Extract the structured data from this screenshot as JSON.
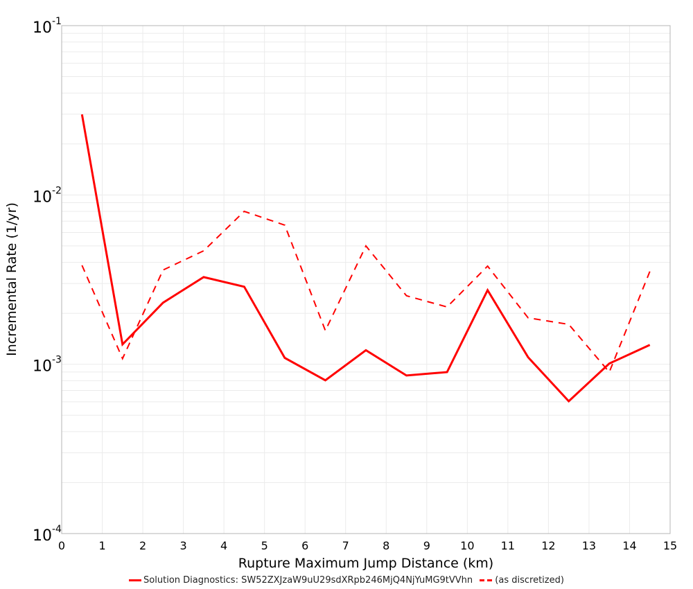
{
  "chart_data": {
    "type": "line",
    "title": "",
    "xlabel": "Rupture Maximum Jump Distance (km)",
    "ylabel": "Incremental Rate (1/yr)",
    "xlim": [
      0,
      15
    ],
    "ylim": [
      0.0001,
      0.1
    ],
    "yscale": "log",
    "grid": true,
    "legend_position": "bottom",
    "x_ticks": [
      "0",
      "1",
      "2",
      "3",
      "4",
      "5",
      "6",
      "7",
      "8",
      "9",
      "10",
      "11",
      "12",
      "13",
      "14",
      "15"
    ],
    "y_ticks": [
      {
        "base": "10",
        "exp": "-1",
        "value": 0.1
      },
      {
        "base": "10",
        "exp": "-2",
        "value": 0.01
      },
      {
        "base": "10",
        "exp": "-3",
        "value": 0.001
      },
      {
        "base": "10",
        "exp": "-4",
        "value": 0.0001
      }
    ],
    "x": [
      0.5,
      1.5,
      2.5,
      3.5,
      4.5,
      5.5,
      6.5,
      7.5,
      8.5,
      9.5,
      10.5,
      11.5,
      12.5,
      13.5,
      14.5
    ],
    "series": [
      {
        "name": "Solution Diagnostics: SW52ZXJzaW9uU29sdXRpb246MjQ4NjYuMG9tVVhn",
        "style": "solid",
        "color": "#ff0000",
        "values": [
          0.0299,
          0.00131,
          0.00231,
          0.00327,
          0.00287,
          0.00109,
          0.000804,
          0.00121,
          0.000858,
          0.000899,
          0.00274,
          0.0011,
          0.000605,
          0.00101,
          0.0013
        ]
      },
      {
        "name": "(as discretized)",
        "style": "dashed",
        "color": "#ff0000",
        "values": [
          0.00384,
          0.00108,
          0.0036,
          0.00468,
          0.008,
          0.00663,
          0.00158,
          0.005,
          0.00254,
          0.00218,
          0.0038,
          0.00188,
          0.00172,
          0.000899,
          0.00353
        ]
      }
    ]
  },
  "legend": {
    "items": [
      {
        "label": "Solution Diagnostics: SW52ZXJzaW9uU29sdXRpb246MjQ4NjYuMG9tVVhn",
        "style": "solid",
        "color": "#ff0000"
      },
      {
        "label": "(as discretized)",
        "style": "dashed",
        "color": "#ff0000"
      }
    ]
  },
  "colors": {
    "grid": "#ebebeb",
    "frame": "#b4b4b4",
    "series": "#ff0000"
  }
}
